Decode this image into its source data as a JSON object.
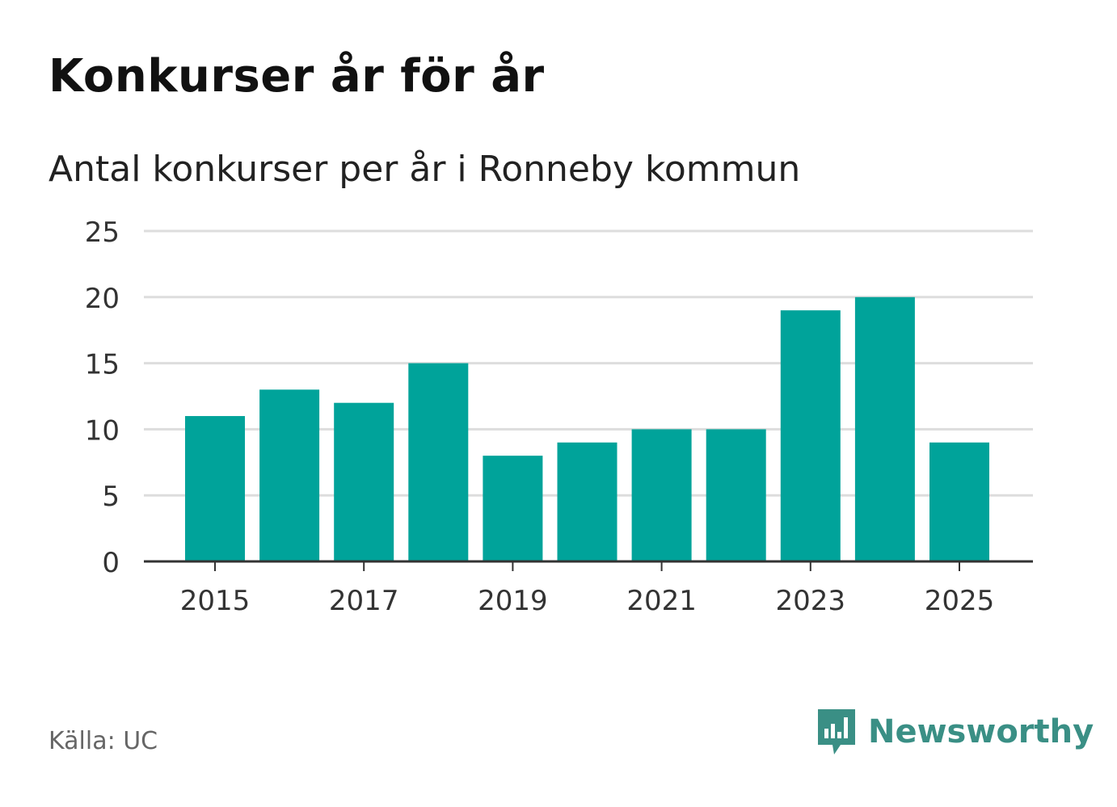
{
  "header": {
    "title": "Konkurser år för år",
    "subtitle": "Antal konkurser per år i Ronneby kommun"
  },
  "footer": {
    "source": "Källa: UC",
    "brand": "Newsworthy"
  },
  "colors": {
    "bar": "#00a39a",
    "grid": "#dddddd",
    "axis": "#333333",
    "brand": "#3a8f85"
  },
  "icons": {
    "brand_logo": "bar-chart-speech-bubble-icon"
  },
  "chart_data": {
    "type": "bar",
    "title": "Konkurser år för år",
    "subtitle": "Antal konkurser per år i Ronneby kommun",
    "xlabel": "",
    "ylabel": "",
    "categories": [
      "2015",
      "2016",
      "2017",
      "2018",
      "2019",
      "2020",
      "2021",
      "2022",
      "2023",
      "2024",
      "2025"
    ],
    "values": [
      11,
      13,
      12,
      15,
      8,
      9,
      10,
      10,
      19,
      20,
      9
    ],
    "x_tick_labels": [
      "2015",
      "2017",
      "2019",
      "2021",
      "2023",
      "2025"
    ],
    "y_ticks": [
      0,
      5,
      10,
      15,
      20,
      25
    ],
    "ylim": [
      0,
      25
    ],
    "grid": true,
    "legend": "none"
  }
}
